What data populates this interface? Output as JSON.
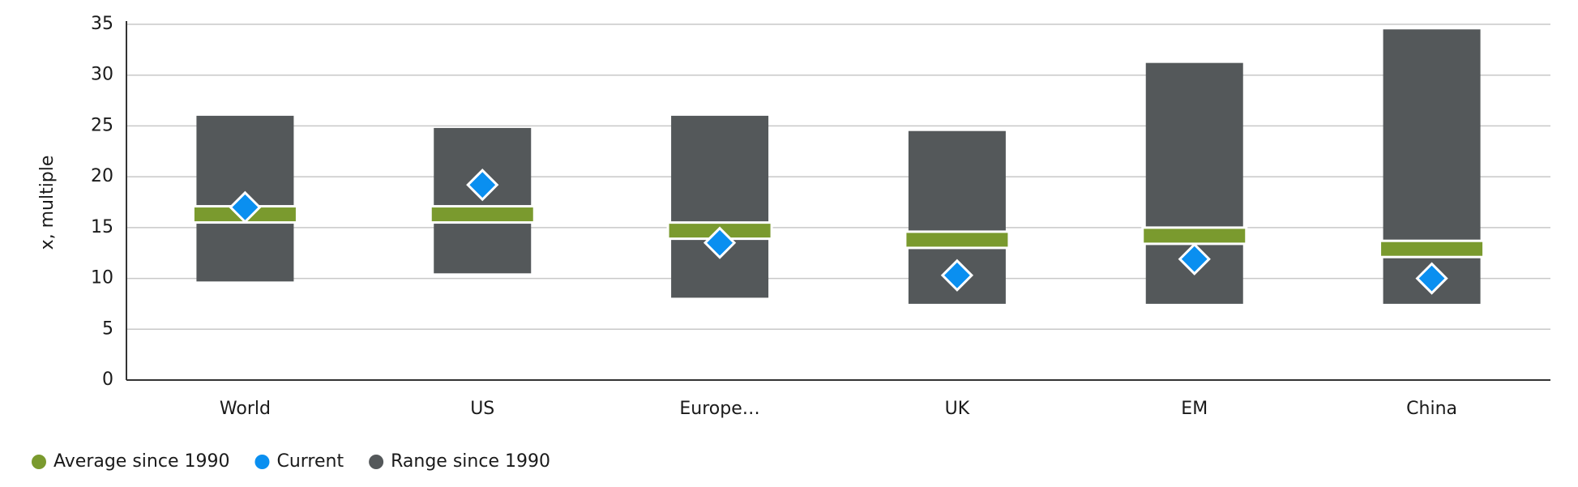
{
  "chart_data": {
    "type": "range",
    "y_label": "x, multiple",
    "categories": [
      "World",
      "US",
      "Europe…",
      "UK",
      "EM",
      "China"
    ],
    "series": [
      {
        "name": "Average since 1990",
        "color": "#7a9a2e",
        "values": [
          16.3,
          16.3,
          14.7,
          13.8,
          14.2,
          12.9
        ]
      },
      {
        "name": "Current",
        "color": "#0a8ff0",
        "values": [
          17.0,
          19.2,
          13.5,
          10.3,
          11.9,
          10.0
        ]
      },
      {
        "name": "Range since 1990",
        "color": "#54585a",
        "low": [
          9.7,
          10.5,
          8.1,
          7.5,
          7.5,
          7.5
        ],
        "high": [
          26,
          24.8,
          26,
          24.5,
          31.2,
          34.5
        ]
      }
    ],
    "ylim": [
      0,
      35
    ],
    "yticks": [
      0,
      5,
      10,
      15,
      20,
      25,
      30,
      35
    ],
    "grid": true
  }
}
